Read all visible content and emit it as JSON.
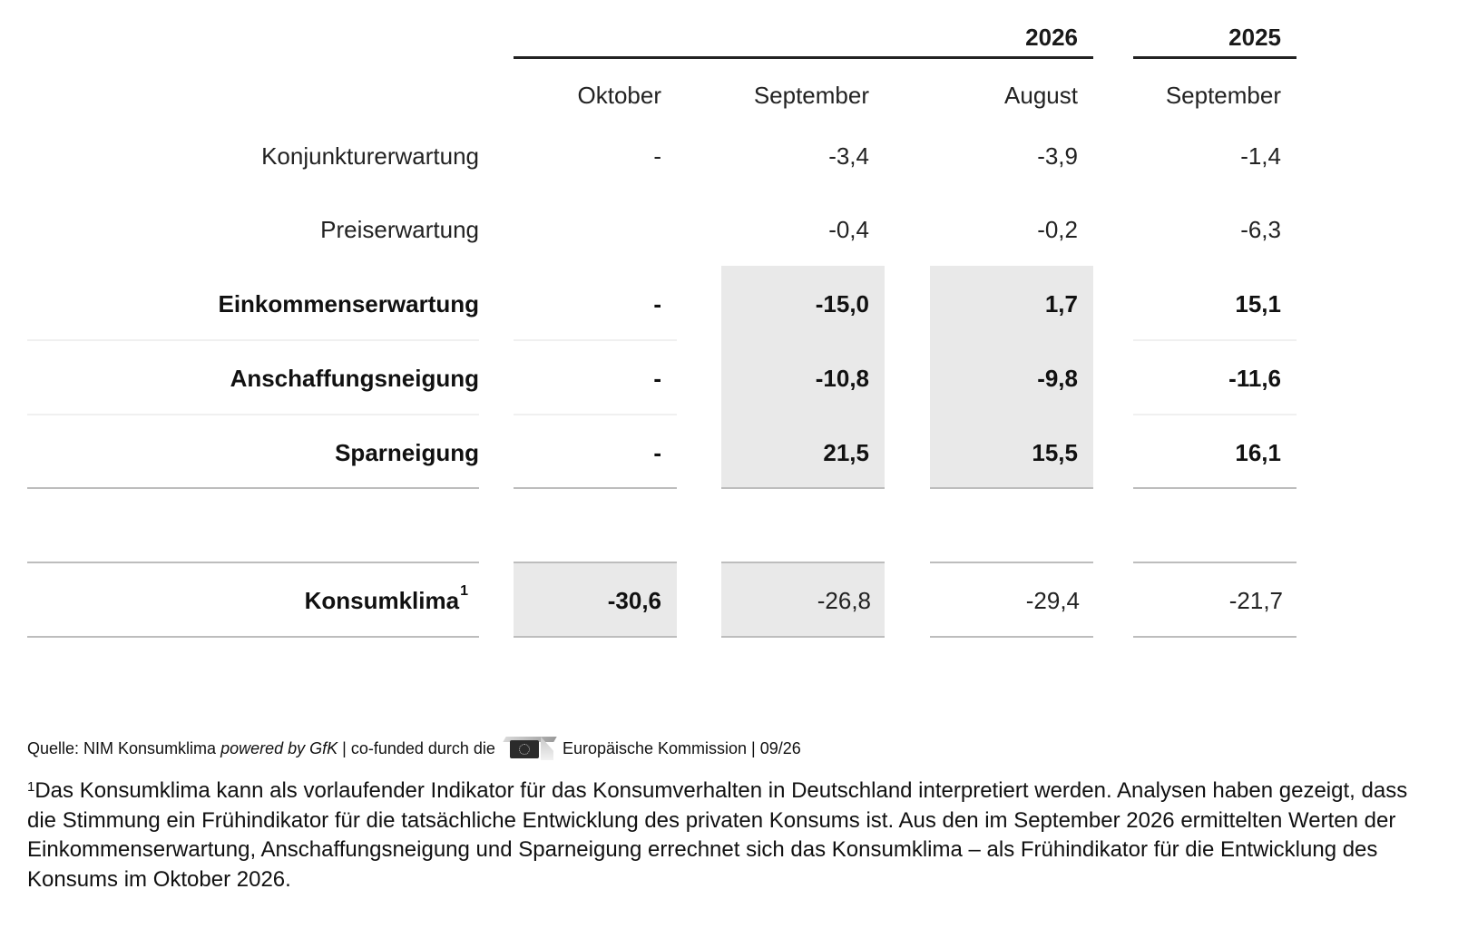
{
  "header": {
    "years": [
      "2026",
      "2025"
    ],
    "months": [
      "Oktober",
      "September",
      "August",
      "September"
    ]
  },
  "rows": [
    {
      "label": "Konjunkturerwartung",
      "bold": false,
      "values": [
        "-",
        "-3,4",
        "-3,9",
        "-1,4"
      ]
    },
    {
      "label": "Preiserwartung",
      "bold": false,
      "values": [
        "",
        "-0,4",
        "-0,2",
        "-6,3"
      ]
    },
    {
      "label": "Einkommenserwartung",
      "bold": true,
      "values": [
        "-",
        "-15,0",
        "1,7",
        "15,1"
      ]
    },
    {
      "label": "Anschaffungsneigung",
      "bold": true,
      "values": [
        "-",
        "-10,8",
        "-9,8",
        "-11,6"
      ]
    },
    {
      "label": "Sparneigung",
      "bold": true,
      "values": [
        "-",
        "21,5",
        "15,5",
        "16,1"
      ]
    }
  ],
  "konsumklima": {
    "label": "Konsumklima",
    "footnote_mark": "1",
    "values": [
      "-30,6",
      "-26,8",
      "-29,4",
      "-21,7"
    ]
  },
  "source": {
    "prefix": "Quelle: NIM Konsumklima ",
    "italic": "powered by GfK",
    "middle": " | co-funded durch die",
    "suffix": "Europäische Kommission | 09/26",
    "logo": "eu-commission-logo"
  },
  "footnote": {
    "mark": "1",
    "text": "Das Konsumklima kann als vorlaufender Indikator für das Konsumverhalten in Deutschland interpretiert werden. Analysen haben gezeigt, dass die Stimmung ein Frühindikator für die tatsächliche Entwicklung des privaten Konsums ist. Aus den im September 2026 ermittelten Werten der Einkommenserwartung, Anschaffungsneigung und Sparneigung errechnet sich das Konsumklima – als Frühindikator für die Entwicklung des Konsums im Oktober 2026."
  }
}
